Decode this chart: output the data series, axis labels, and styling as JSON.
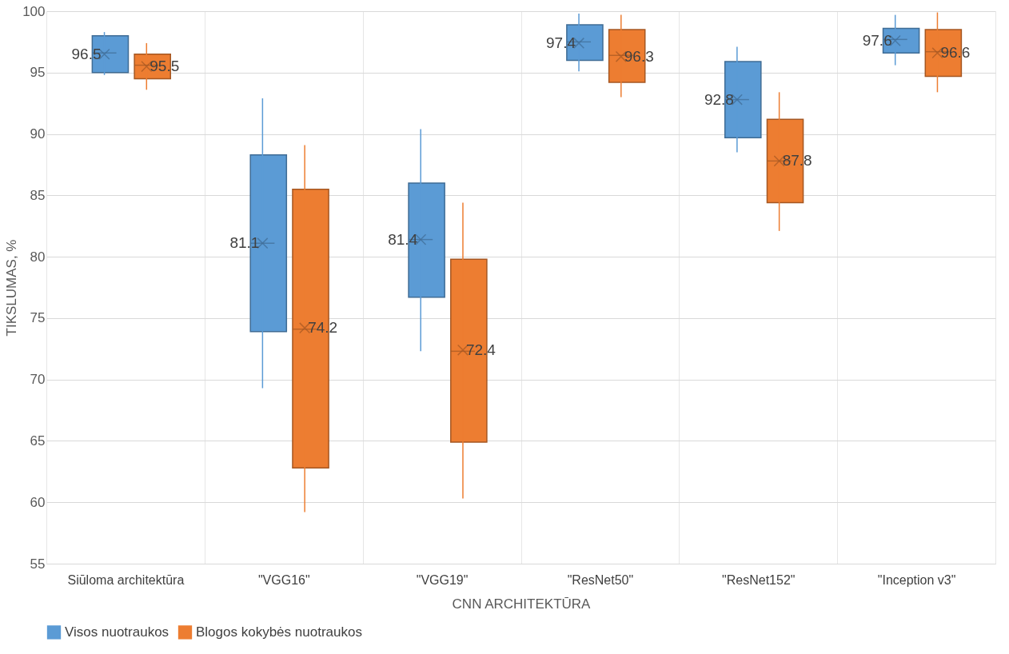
{
  "chart_data": {
    "type": "box",
    "xlabel": "CNN ARCHITEKTŪRA",
    "ylabel": "TIKSLUMAS, %",
    "categories": [
      "Siūloma architektūra",
      "\"VGG16\"",
      "\"VGG19\"",
      "\"ResNet50\"",
      "\"ResNet152\"",
      "\"Inception v3\""
    ],
    "ylim": [
      55,
      100
    ],
    "yticks": [
      55,
      60,
      65,
      70,
      75,
      80,
      85,
      90,
      95,
      100
    ],
    "grid": true,
    "legend": "bottom",
    "data_labels": true,
    "series": [
      {
        "name": "Visos nuotraukos",
        "color": "#5b9bd5",
        "value_labels": [
          "96.5",
          "81.1",
          "81.4",
          "97.4",
          "92.8",
          "97.6"
        ],
        "boxes": [
          {
            "low": 94.8,
            "q1": 95.0,
            "median": 96.6,
            "q3": 98.0,
            "high": 98.3,
            "mean": 96.5
          },
          {
            "low": 69.3,
            "q1": 73.9,
            "median": 81.1,
            "q3": 88.3,
            "high": 92.9,
            "mean": 81.1
          },
          {
            "low": 72.3,
            "q1": 76.7,
            "median": 81.4,
            "q3": 86.0,
            "high": 90.4,
            "mean": 81.4
          },
          {
            "low": 95.1,
            "q1": 96.0,
            "median": 97.5,
            "q3": 98.9,
            "high": 99.8,
            "mean": 97.4
          },
          {
            "low": 88.5,
            "q1": 89.7,
            "median": 92.8,
            "q3": 95.9,
            "high": 97.1,
            "mean": 92.8
          },
          {
            "low": 95.6,
            "q1": 96.6,
            "median": 97.7,
            "q3": 98.6,
            "high": 99.7,
            "mean": 97.6
          }
        ]
      },
      {
        "name": "Blogos kokybės nuotraukos",
        "color": "#ed7d31",
        "value_labels": [
          "95.5",
          "74.2",
          "72.4",
          "96.3",
          "87.8",
          "96.6"
        ],
        "boxes": [
          {
            "low": 93.6,
            "q1": 94.5,
            "median": 95.6,
            "q3": 96.5,
            "high": 97.4,
            "mean": 95.5
          },
          {
            "low": 59.2,
            "q1": 62.8,
            "median": 74.1,
            "q3": 85.5,
            "high": 89.1,
            "mean": 74.2
          },
          {
            "low": 60.3,
            "q1": 64.9,
            "median": 72.3,
            "q3": 79.8,
            "high": 84.4,
            "mean": 72.4
          },
          {
            "low": 93.0,
            "q1": 94.2,
            "median": 96.4,
            "q3": 98.5,
            "high": 99.7,
            "mean": 96.3
          },
          {
            "low": 82.1,
            "q1": 84.4,
            "median": 87.8,
            "q3": 91.2,
            "high": 93.4,
            "mean": 87.8
          },
          {
            "low": 93.4,
            "q1": 94.7,
            "median": 96.7,
            "q3": 98.5,
            "high": 99.9,
            "mean": 96.6
          }
        ]
      }
    ]
  }
}
